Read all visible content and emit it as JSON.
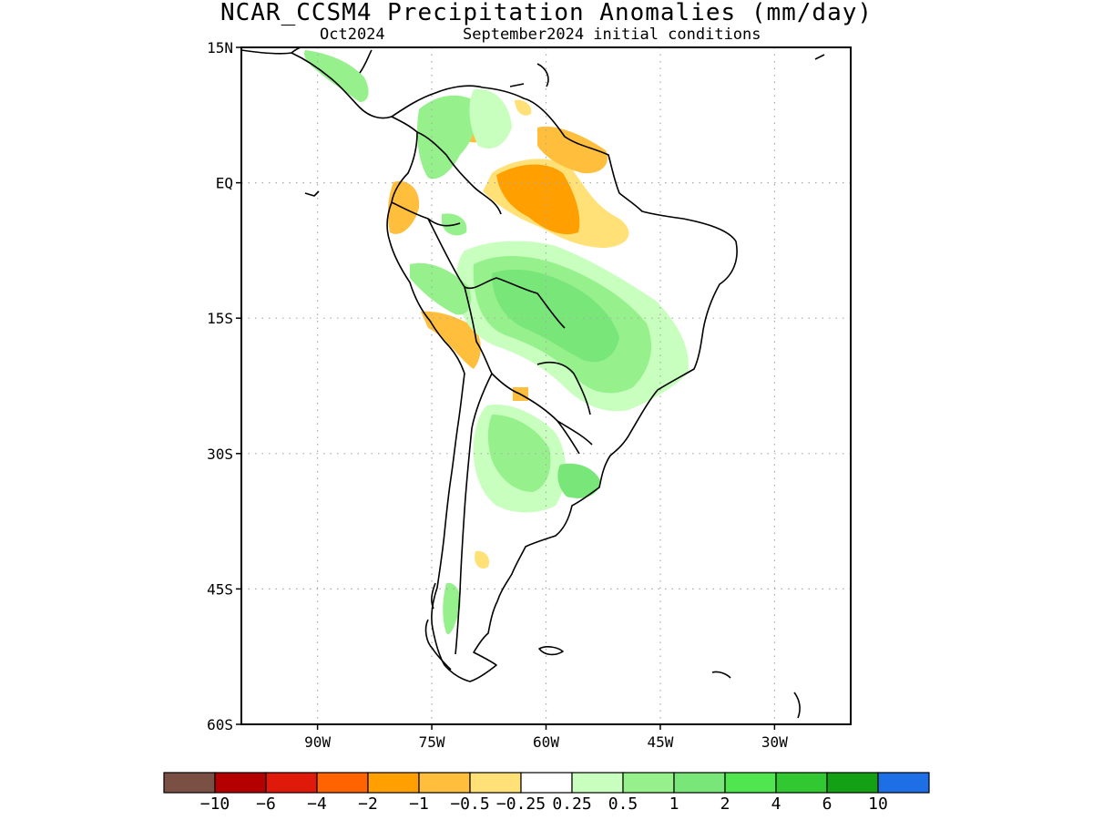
{
  "title": "NCAR_CCSM4 Precipitation Anomalies (mm/day)",
  "subtitle_left": "Oct2024",
  "subtitle_right": "September2024 initial conditions",
  "axes": {
    "lat_labels": [
      "15N",
      "EQ",
      "15S",
      "30S",
      "45S",
      "60S"
    ],
    "lat_values": [
      15,
      0,
      -15,
      -30,
      -45,
      -60
    ],
    "lon_labels": [
      "90W",
      "75W",
      "60W",
      "45W",
      "30W"
    ],
    "lon_values": [
      -90,
      -75,
      -60,
      -45,
      -30
    ],
    "lon_range": [
      -100,
      -20
    ],
    "lat_range": [
      -60,
      15
    ],
    "grid": "dotted"
  },
  "colorbar": {
    "colors": [
      "#7a5044",
      "#b40000",
      "#e01a0a",
      "#ff6400",
      "#ffa000",
      "#ffbe3c",
      "#ffe178",
      "#ffffff",
      "#c8ffbe",
      "#96f08c",
      "#78e678",
      "#50e650",
      "#32c832",
      "#14a014",
      "#1e6ee6"
    ],
    "labels": [
      "−10",
      "−6",
      "−4",
      "−2",
      "−1",
      "−0.5",
      "−0.25",
      "0.25",
      "0.5",
      "1",
      "2",
      "4",
      "6",
      "10"
    ]
  },
  "colors": {
    "frame": "#000000",
    "coast": "#000000",
    "grid": "#aaaaaa"
  }
}
